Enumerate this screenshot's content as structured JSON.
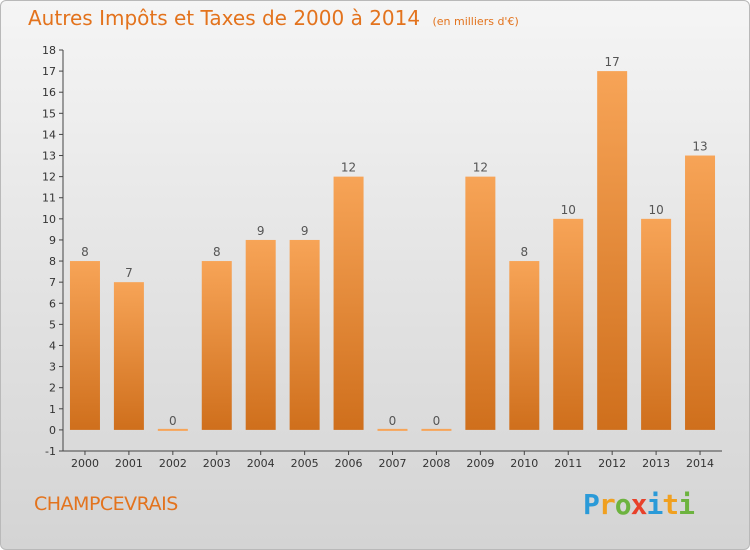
{
  "title": {
    "main": "Autres Impôts et Taxes de 2000 à 2014",
    "unit": "(en milliers d'€)"
  },
  "commune": "CHAMPCEVRAIS",
  "logo": {
    "letters": [
      {
        "ch": "P",
        "color": "#2a9ad8"
      },
      {
        "ch": "r",
        "color": "#f0a020"
      },
      {
        "ch": "o",
        "color": "#6db33f"
      },
      {
        "ch": "x",
        "color": "#e8412a"
      },
      {
        "ch": "i",
        "color": "#2a9ad8"
      },
      {
        "ch": "t",
        "color": "#f0a020"
      },
      {
        "ch": "i",
        "color": "#6db33f"
      }
    ]
  },
  "colors": {
    "bar_top": "#f7a457",
    "bar_bottom": "#cf6f1c",
    "title": "#e3731d"
  },
  "chart_data": {
    "type": "bar",
    "categories": [
      "2000",
      "2001",
      "2002",
      "2003",
      "2004",
      "2005",
      "2006",
      "2007",
      "2008",
      "2009",
      "2010",
      "2011",
      "2012",
      "2013",
      "2014"
    ],
    "values": [
      8,
      7,
      0,
      8,
      9,
      9,
      12,
      0,
      0,
      12,
      8,
      10,
      17,
      10,
      13
    ],
    "ylim": [
      -1,
      18
    ],
    "yticks": [
      -1,
      0,
      1,
      2,
      3,
      4,
      5,
      6,
      7,
      8,
      9,
      10,
      11,
      12,
      13,
      14,
      15,
      16,
      17,
      18
    ],
    "grid": false,
    "data_labels": true
  }
}
